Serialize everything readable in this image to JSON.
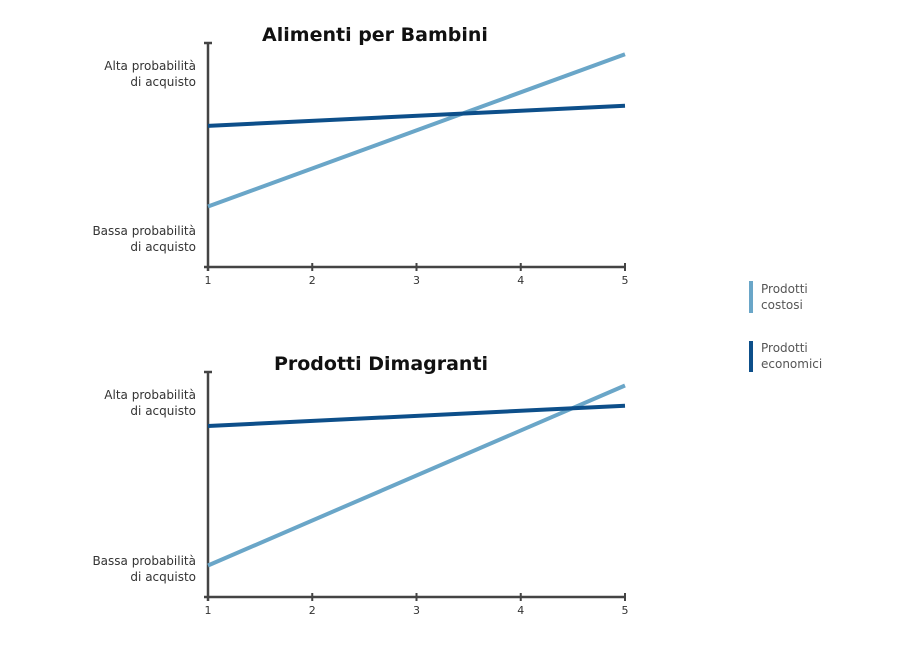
{
  "legend": [
    {
      "label_line1": "Prodotti",
      "label_line2": "costosi",
      "color": "#6aa6c8"
    },
    {
      "label_line1": "Prodotti",
      "label_line2": "economici",
      "color": "#0d4f8a"
    }
  ],
  "chart_data": [
    {
      "type": "line",
      "title": "Alimenti per Bambini",
      "x": [
        1,
        5
      ],
      "xticks": [
        "1",
        "2",
        "3",
        "4",
        "5"
      ],
      "ylabel_high": [
        "Alta probabilità",
        "di acquisto"
      ],
      "ylabel_low": [
        "Bassa probabilità",
        "di acquisto"
      ],
      "ylim": [
        0,
        1
      ],
      "series": [
        {
          "name": "Prodotti costosi",
          "color": "#6aa6c8",
          "values": [
            0.27,
            0.95
          ]
        },
        {
          "name": "Prodotti economici",
          "color": "#0d4f8a",
          "values": [
            0.63,
            0.72
          ]
        }
      ]
    },
    {
      "type": "line",
      "title": "Prodotti Dimagranti",
      "x": [
        1,
        5
      ],
      "xticks": [
        "1",
        "2",
        "3",
        "4",
        "5"
      ],
      "ylabel_high": [
        "Alta probabilità",
        "di acquisto"
      ],
      "ylabel_low": [
        "Bassa probabilità",
        "di acquisto"
      ],
      "ylim": [
        0,
        1
      ],
      "series": [
        {
          "name": "Prodotti costosi",
          "color": "#6aa6c8",
          "values": [
            0.14,
            0.94
          ]
        },
        {
          "name": "Prodotti economici",
          "color": "#0d4f8a",
          "values": [
            0.76,
            0.85
          ]
        }
      ]
    }
  ]
}
